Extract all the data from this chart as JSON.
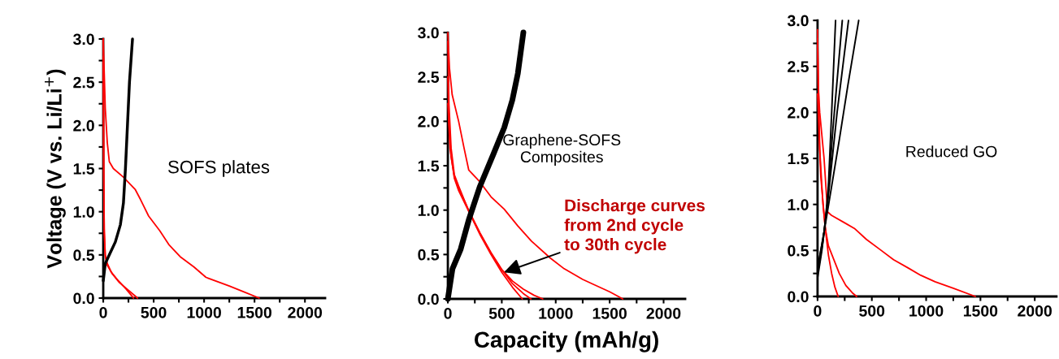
{
  "chart_data": [
    {
      "type": "line",
      "ylabel": "Voltage (V vs. Li/Li$^{+}$)",
      "annotations": [
        "SOFS plates"
      ],
      "xlim": [
        0,
        2200
      ],
      "ylim": [
        0,
        3.0
      ],
      "xticks": [
        0,
        {
          "value": 250,
          "label": null
        },
        500,
        {
          "value": 750,
          "label": null
        },
        1000,
        {
          "value": 1250,
          "label": null
        },
        1500,
        {
          "value": 1750,
          "label": null
        },
        2000
      ],
      "yticks": [
        {
          "value": 0,
          "label": "0.0"
        },
        {
          "value": 0.25,
          "label": null
        },
        0.5,
        {
          "value": 0.75,
          "label": null
        },
        {
          "value": 1,
          "label": "1.0"
        },
        {
          "value": 1.25,
          "label": null
        },
        1.5,
        {
          "value": 1.75,
          "label": null
        },
        {
          "value": 2,
          "label": "2.0"
        },
        {
          "value": 2.25,
          "label": null
        },
        2.5,
        {
          "value": 2.75,
          "label": null
        },
        {
          "value": 3,
          "label": "3.0"
        }
      ],
      "grid": false,
      "legend": false,
      "marker": "none",
      "line_style": "solid",
      "series": [
        {
          "color": "#ff0000",
          "x": [
            0,
            10,
            20,
            40,
            60,
            100,
            200,
            316,
            370,
            450,
            560,
            650,
            762,
            900,
            1019,
            1250,
            1400,
            1546
          ],
          "values": [
            3.0,
            2.6,
            2.2,
            1.8,
            1.58,
            1.5,
            1.4,
            1.26,
            1.14,
            0.95,
            0.78,
            0.62,
            0.48,
            0.36,
            0.24,
            0.14,
            0.07,
            0
          ]
        },
        {
          "color": "#ff0000",
          "x": [
            0,
            5,
            10,
            20,
            40,
            80,
            150,
            230,
            280,
            300
          ],
          "values": [
            3.0,
            1.5,
            0.8,
            0.5,
            0.4,
            0.3,
            0.2,
            0.1,
            0.03,
            0
          ]
        },
        {
          "color": "#ff0000",
          "x": [
            0,
            5,
            10,
            20,
            40,
            90,
            160,
            250,
            310,
            340
          ],
          "values": [
            2.8,
            1.4,
            0.75,
            0.48,
            0.38,
            0.28,
            0.18,
            0.09,
            0.03,
            0
          ]
        },
        {
          "color": "#000000",
          "x": [
            0,
            20,
            60,
            120,
            170,
            200,
            220,
            240,
            260,
            290
          ],
          "values": [
            0.2,
            0.4,
            0.5,
            0.65,
            0.85,
            1.1,
            1.5,
            2.0,
            2.5,
            3.0
          ]
        }
      ]
    },
    {
      "type": "line",
      "xlabel": "Capacity (mAh/g)",
      "annotations": [
        "Graphene-SOFS\nComposites",
        {
          "text": "Discharge curves\nfrom 2nd cycle\nto 30th cycle",
          "x": 520,
          "y": 0.3
        }
      ],
      "xlim": [
        0,
        2200
      ],
      "ylim": [
        0,
        3.0
      ],
      "xticks": [
        0,
        {
          "value": 250,
          "label": null
        },
        500,
        {
          "value": 750,
          "label": null
        },
        1000,
        {
          "value": 1250,
          "label": null
        },
        1500,
        {
          "value": 1750,
          "label": null
        },
        2000
      ],
      "yticks": [
        {
          "value": 0,
          "label": "0.0"
        },
        {
          "value": 0.25,
          "label": null
        },
        0.5,
        {
          "value": 0.75,
          "label": null
        },
        {
          "value": 1,
          "label": "1.0"
        },
        {
          "value": 1.25,
          "label": null
        },
        1.5,
        {
          "value": 1.75,
          "label": null
        },
        {
          "value": 2,
          "label": "2.0"
        },
        {
          "value": 2.25,
          "label": null
        },
        2.5,
        {
          "value": 2.75,
          "label": null
        },
        {
          "value": 3,
          "label": "3.0"
        }
      ],
      "grid": false,
      "legend": false,
      "marker": "none",
      "line_style": "solid",
      "series": [
        {
          "color": "#ff0000",
          "x": [
            0,
            15,
            40,
            100,
            150,
            194,
            295,
            400,
            523,
            650,
            775,
            950,
            1078,
            1250,
            1356,
            1500,
            1621
          ],
          "values": [
            3.0,
            2.6,
            2.3,
            2.0,
            1.7,
            1.45,
            1.32,
            1.15,
            1.01,
            0.82,
            0.65,
            0.46,
            0.34,
            0.22,
            0.16,
            0.08,
            0
          ]
        },
        {
          "color": "#ff0000",
          "x": [
            0,
            10,
            30,
            60,
            100,
            150,
            200,
            300,
            400,
            500,
            600,
            690
          ],
          "values": [
            2.9,
            2.2,
            1.7,
            1.4,
            1.27,
            1.12,
            0.97,
            0.72,
            0.5,
            0.3,
            0.13,
            0
          ]
        },
        {
          "color": "#ff0000",
          "x": [
            0,
            10,
            30,
            60,
            100,
            200,
            300,
            400,
            500,
            600,
            700,
            770
          ],
          "values": [
            2.5,
            2.0,
            1.6,
            1.38,
            1.25,
            0.98,
            0.74,
            0.52,
            0.33,
            0.17,
            0.06,
            0
          ]
        },
        {
          "color": "#ff0000",
          "x": [
            0,
            20,
            60,
            100,
            200,
            300,
            400,
            500,
            600,
            700,
            800,
            880
          ],
          "values": [
            2.2,
            1.7,
            1.36,
            1.22,
            0.97,
            0.73,
            0.52,
            0.33,
            0.2,
            0.11,
            0.04,
            0
          ]
        },
        {
          "color": "#000000",
          "x": [
            0,
            43,
            119,
            194,
            295,
            422,
            523,
            598,
            649,
            700
          ],
          "values": [
            0,
            0.34,
            0.56,
            0.89,
            1.26,
            1.63,
            1.93,
            2.24,
            2.54,
            3.0
          ]
        }
      ]
    },
    {
      "type": "line",
      "annotations": [
        "Reduced GO"
      ],
      "xlim": [
        0,
        2200
      ],
      "ylim": [
        0,
        3.0
      ],
      "xticks": [
        0,
        {
          "value": 250,
          "label": null
        },
        500,
        {
          "value": 750,
          "label": null
        },
        1000,
        {
          "value": 1250,
          "label": null
        },
        1500,
        {
          "value": 1750,
          "label": null
        },
        2000
      ],
      "yticks": [
        {
          "value": 0,
          "label": "0.0"
        },
        {
          "value": 0.25,
          "label": null
        },
        0.5,
        {
          "value": 0.75,
          "label": null
        },
        {
          "value": 1,
          "label": "1.0"
        },
        {
          "value": 1.25,
          "label": null
        },
        1.5,
        {
          "value": 1.75,
          "label": null
        },
        {
          "value": 2,
          "label": "2.0"
        },
        {
          "value": 2.25,
          "label": null
        },
        2.5,
        {
          "value": 2.75,
          "label": null
        },
        {
          "value": 3,
          "label": "3.0"
        }
      ],
      "grid": false,
      "legend": false,
      "marker": "none",
      "line_style": "solid",
      "series": [
        {
          "color": "#ff0000",
          "x": [
            0,
            5,
            20,
            60,
            92,
            130,
            250,
            339,
            450,
            587,
            700,
            834,
            950,
            1082,
            1250,
            1453
          ],
          "values": [
            2.9,
            2.3,
            2.0,
            1.5,
            0.92,
            0.88,
            0.8,
            0.74,
            0.62,
            0.5,
            0.4,
            0.31,
            0.23,
            0.16,
            0.09,
            0
          ]
        },
        {
          "color": "#ff0000",
          "x": [
            0,
            20,
            50,
            80,
            100,
            130,
            160,
            190
          ],
          "values": [
            2.8,
            1.6,
            1.0,
            0.65,
            0.45,
            0.25,
            0.1,
            0
          ]
        },
        {
          "color": "#ff0000",
          "x": [
            0,
            30,
            70,
            100,
            150,
            200,
            260,
            320,
            360
          ],
          "values": [
            2.2,
            1.3,
            0.75,
            0.55,
            0.4,
            0.25,
            0.12,
            0.04,
            0
          ]
        },
        {
          "color": "#000000",
          "x": [
            0,
            40,
            70,
            100,
            130,
            166
          ],
          "values": [
            0.2,
            0.5,
            0.8,
            1.2,
            2.0,
            3.0
          ]
        },
        {
          "color": "#000000",
          "x": [
            0,
            50,
            90,
            140,
            228
          ],
          "values": [
            0.25,
            0.6,
            1.0,
            1.8,
            3.0
          ]
        },
        {
          "color": "#000000",
          "x": [
            0,
            60,
            100,
            180,
            285
          ],
          "values": [
            0.3,
            0.7,
            1.1,
            2.0,
            3.0
          ]
        },
        {
          "color": "#000000",
          "x": [
            0,
            60,
            130,
            200,
            280,
            379
          ],
          "values": [
            0.3,
            0.7,
            1.2,
            1.7,
            2.3,
            3.0
          ]
        }
      ]
    }
  ]
}
